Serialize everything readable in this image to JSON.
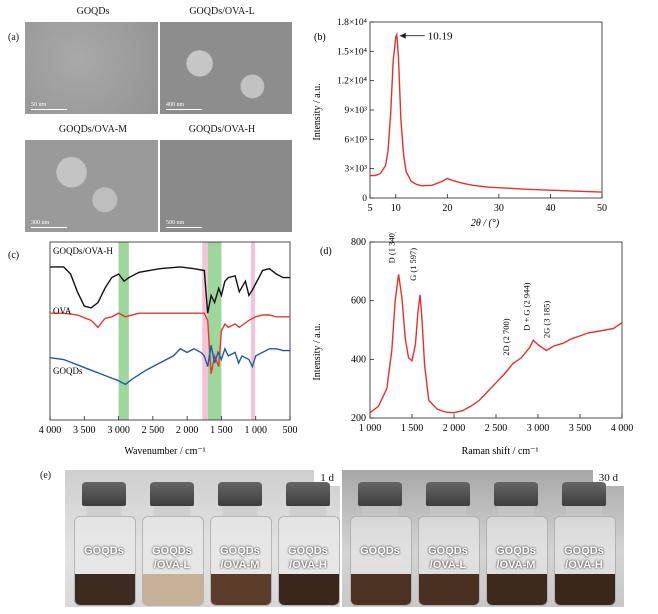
{
  "panel_a": {
    "label": "(a)",
    "images": [
      {
        "title": "GOQDs",
        "scale": "50 nm"
      },
      {
        "title": "GOQDs/OVA-L",
        "scale": "400 nm"
      },
      {
        "title": "GOQDs/OVA-M",
        "scale": "300 nm"
      },
      {
        "title": "GOQDs/OVA-H",
        "scale": "500 nm"
      }
    ]
  },
  "panel_e": {
    "label": "(e)",
    "day1": "1 d",
    "day30": "30 d",
    "vials": [
      {
        "line1": "GOQDs",
        "line2": ""
      },
      {
        "line1": "GOQDs",
        "line2": "/OVA-L"
      },
      {
        "line1": "GOQDs",
        "line2": "/OVA-M"
      },
      {
        "line1": "GOQDs",
        "line2": "/OVA-H"
      }
    ]
  },
  "chart_data": [
    {
      "panel": "(b)",
      "type": "line",
      "xlabel": "2θ / (°)",
      "ylabel": "Intensity / a.u.",
      "xlim": [
        5,
        50
      ],
      "ylim": [
        0,
        18000
      ],
      "xticks": [
        "5",
        "10",
        "20",
        "30",
        "40",
        "50"
      ],
      "yticks": [
        "0",
        "3×10³",
        "6×10³",
        "9×10³",
        "1.2×10⁴",
        "1.5×10⁴",
        "1.8×10⁴"
      ],
      "color": "#e8302a",
      "annotation": {
        "text": "10.19",
        "x": 10.19,
        "y": 16700
      },
      "x": [
        5,
        6,
        7,
        8,
        8.5,
        9,
        9.5,
        10,
        10.19,
        10.5,
        11,
        11.5,
        12,
        13,
        14,
        15,
        17,
        19,
        20,
        21,
        23,
        25,
        28,
        30,
        35,
        40,
        45,
        50
      ],
      "y": [
        2300,
        2300,
        2500,
        3300,
        4800,
        8500,
        14000,
        16500,
        16700,
        14500,
        8000,
        4500,
        2700,
        1700,
        1400,
        1250,
        1300,
        1700,
        2000,
        1800,
        1500,
        1300,
        1100,
        1050,
        900,
        800,
        700,
        600
      ]
    },
    {
      "panel": "(c)",
      "type": "line",
      "xlabel": "Wavenumber / cm⁻¹",
      "xlim": [
        4000,
        500
      ],
      "xticks": [
        "4 000",
        "3 500",
        "3 000",
        "2 500",
        "2 000",
        "1 500",
        "1 000",
        "500"
      ],
      "bands_green": [
        [
          3000,
          2850
        ],
        [
          1700,
          1500
        ]
      ],
      "bands_pink": [
        [
          1780,
          1700
        ],
        [
          1070,
          1010
        ]
      ],
      "series": [
        {
          "name": "GOQDs/OVA-H",
          "color": "#111111",
          "x": [
            4000,
            3800,
            3700,
            3600,
            3500,
            3400,
            3300,
            3200,
            3100,
            3000,
            2920,
            2850,
            2700,
            2400,
            2100,
            1900,
            1750,
            1700,
            1650,
            1600,
            1540,
            1500,
            1450,
            1400,
            1300,
            1240,
            1150,
            1100,
            1050,
            900,
            800,
            700,
            600,
            500
          ],
          "y": [
            86,
            86,
            82,
            72,
            64,
            63,
            66,
            74,
            80,
            82,
            78,
            80,
            83,
            85,
            86,
            85,
            84,
            60,
            70,
            66,
            74,
            70,
            78,
            80,
            81,
            72,
            78,
            70,
            73,
            84,
            85,
            82,
            80,
            80
          ]
        },
        {
          "name": "OVA",
          "color": "#e03a2f",
          "x": [
            4000,
            3800,
            3600,
            3400,
            3300,
            3200,
            3100,
            3000,
            2900,
            2700,
            2400,
            2100,
            1900,
            1750,
            1700,
            1650,
            1600,
            1540,
            1500,
            1450,
            1400,
            1300,
            1240,
            1100,
            1000,
            900,
            800,
            700,
            600,
            500
          ],
          "y": [
            60,
            60,
            59,
            56,
            52,
            57,
            58,
            60,
            58,
            60,
            60,
            60,
            60,
            60,
            56,
            26,
            36,
            30,
            50,
            54,
            52,
            54,
            52,
            56,
            58,
            59,
            59,
            58,
            58,
            58
          ]
        },
        {
          "name": "GOQDs",
          "color": "#2456b0",
          "x": [
            4000,
            3800,
            3600,
            3400,
            3200,
            3000,
            2900,
            2800,
            2600,
            2400,
            2200,
            2100,
            2000,
            1900,
            1800,
            1750,
            1700,
            1650,
            1600,
            1550,
            1500,
            1450,
            1400,
            1300,
            1250,
            1200,
            1100,
            1050,
            1000,
            900,
            800,
            700,
            600,
            500
          ],
          "y": [
            35,
            34,
            31,
            28,
            25,
            22,
            20,
            23,
            28,
            32,
            36,
            40,
            38,
            40,
            38,
            36,
            30,
            42,
            32,
            38,
            34,
            40,
            36,
            38,
            32,
            36,
            34,
            30,
            36,
            38,
            40,
            40,
            39,
            39
          ]
        }
      ]
    },
    {
      "panel": "(d)",
      "type": "line",
      "xlabel": "Raman shift / cm⁻¹",
      "ylabel": "Intensity / a.u.",
      "xlim": [
        1000,
        4000
      ],
      "ylim": [
        200,
        800
      ],
      "xticks": [
        "1 000",
        "1 500",
        "2 000",
        "2 500",
        "3 000",
        "3 500",
        "4 000"
      ],
      "yticks": [
        "200",
        "400",
        "600",
        "800"
      ],
      "color": "#e8302a",
      "peak_labels": [
        {
          "text": "D (1 340)",
          "x": 1340
        },
        {
          "text": "G (1 597)",
          "x": 1597
        },
        {
          "text": "2D (2 700)",
          "x": 2700
        },
        {
          "text": "D + G (2 944)",
          "x": 2944
        },
        {
          "text": "2G (3 185)",
          "x": 3185
        }
      ],
      "x": [
        1000,
        1100,
        1200,
        1260,
        1300,
        1340,
        1380,
        1420,
        1460,
        1500,
        1540,
        1570,
        1597,
        1620,
        1650,
        1700,
        1800,
        1900,
        2000,
        2100,
        2200,
        2300,
        2400,
        2500,
        2600,
        2700,
        2800,
        2900,
        2944,
        3000,
        3100,
        3185,
        3300,
        3400,
        3500,
        3600,
        3700,
        3800,
        3900,
        4000
      ],
      "y": [
        218,
        240,
        300,
        430,
        600,
        690,
        610,
        470,
        405,
        395,
        450,
        560,
        620,
        530,
        380,
        260,
        230,
        220,
        218,
        225,
        240,
        260,
        290,
        320,
        350,
        385,
        405,
        440,
        465,
        450,
        430,
        445,
        455,
        470,
        480,
        490,
        495,
        500,
        505,
        525
      ]
    }
  ]
}
